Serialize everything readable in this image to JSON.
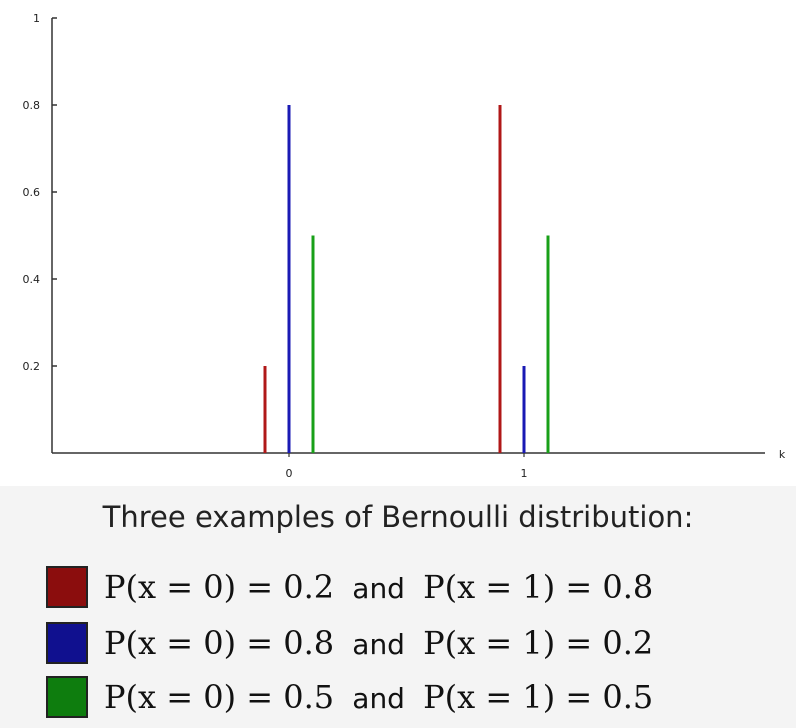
{
  "chart_data": {
    "type": "bar",
    "title": "",
    "xlabel": "k",
    "ylabel": "",
    "categories": [
      "0",
      "1"
    ],
    "ylim": [
      0,
      1
    ],
    "yticks": [
      "1",
      "0.8",
      "0.6",
      "0.4",
      "0.2"
    ],
    "ytick_values": [
      1,
      0.8,
      0.6,
      0.4,
      0.2
    ],
    "grid": false,
    "series": [
      {
        "color": "#b01818",
        "values": [
          0.2,
          0.8
        ]
      },
      {
        "color": "#1a1ab4",
        "values": [
          0.8,
          0.2
        ]
      },
      {
        "color": "#18a018",
        "values": [
          0.5,
          0.5
        ]
      }
    ]
  },
  "legend": {
    "title": "Three examples of Bernoulli distribution:",
    "items": [
      {
        "color": "#8b0d0d",
        "lhs": "P(x = 0) = 0.2",
        "and": "and",
        "rhs": "P(x = 1) = 0.8"
      },
      {
        "color": "#10108f",
        "lhs": "P(x = 0) = 0.8",
        "and": "and",
        "rhs": "P(x = 1) = 0.2"
      },
      {
        "color": "#0e7d0e",
        "lhs": "P(x = 0) = 0.5",
        "and": "and",
        "rhs": "P(x = 1) = 0.5"
      }
    ]
  }
}
